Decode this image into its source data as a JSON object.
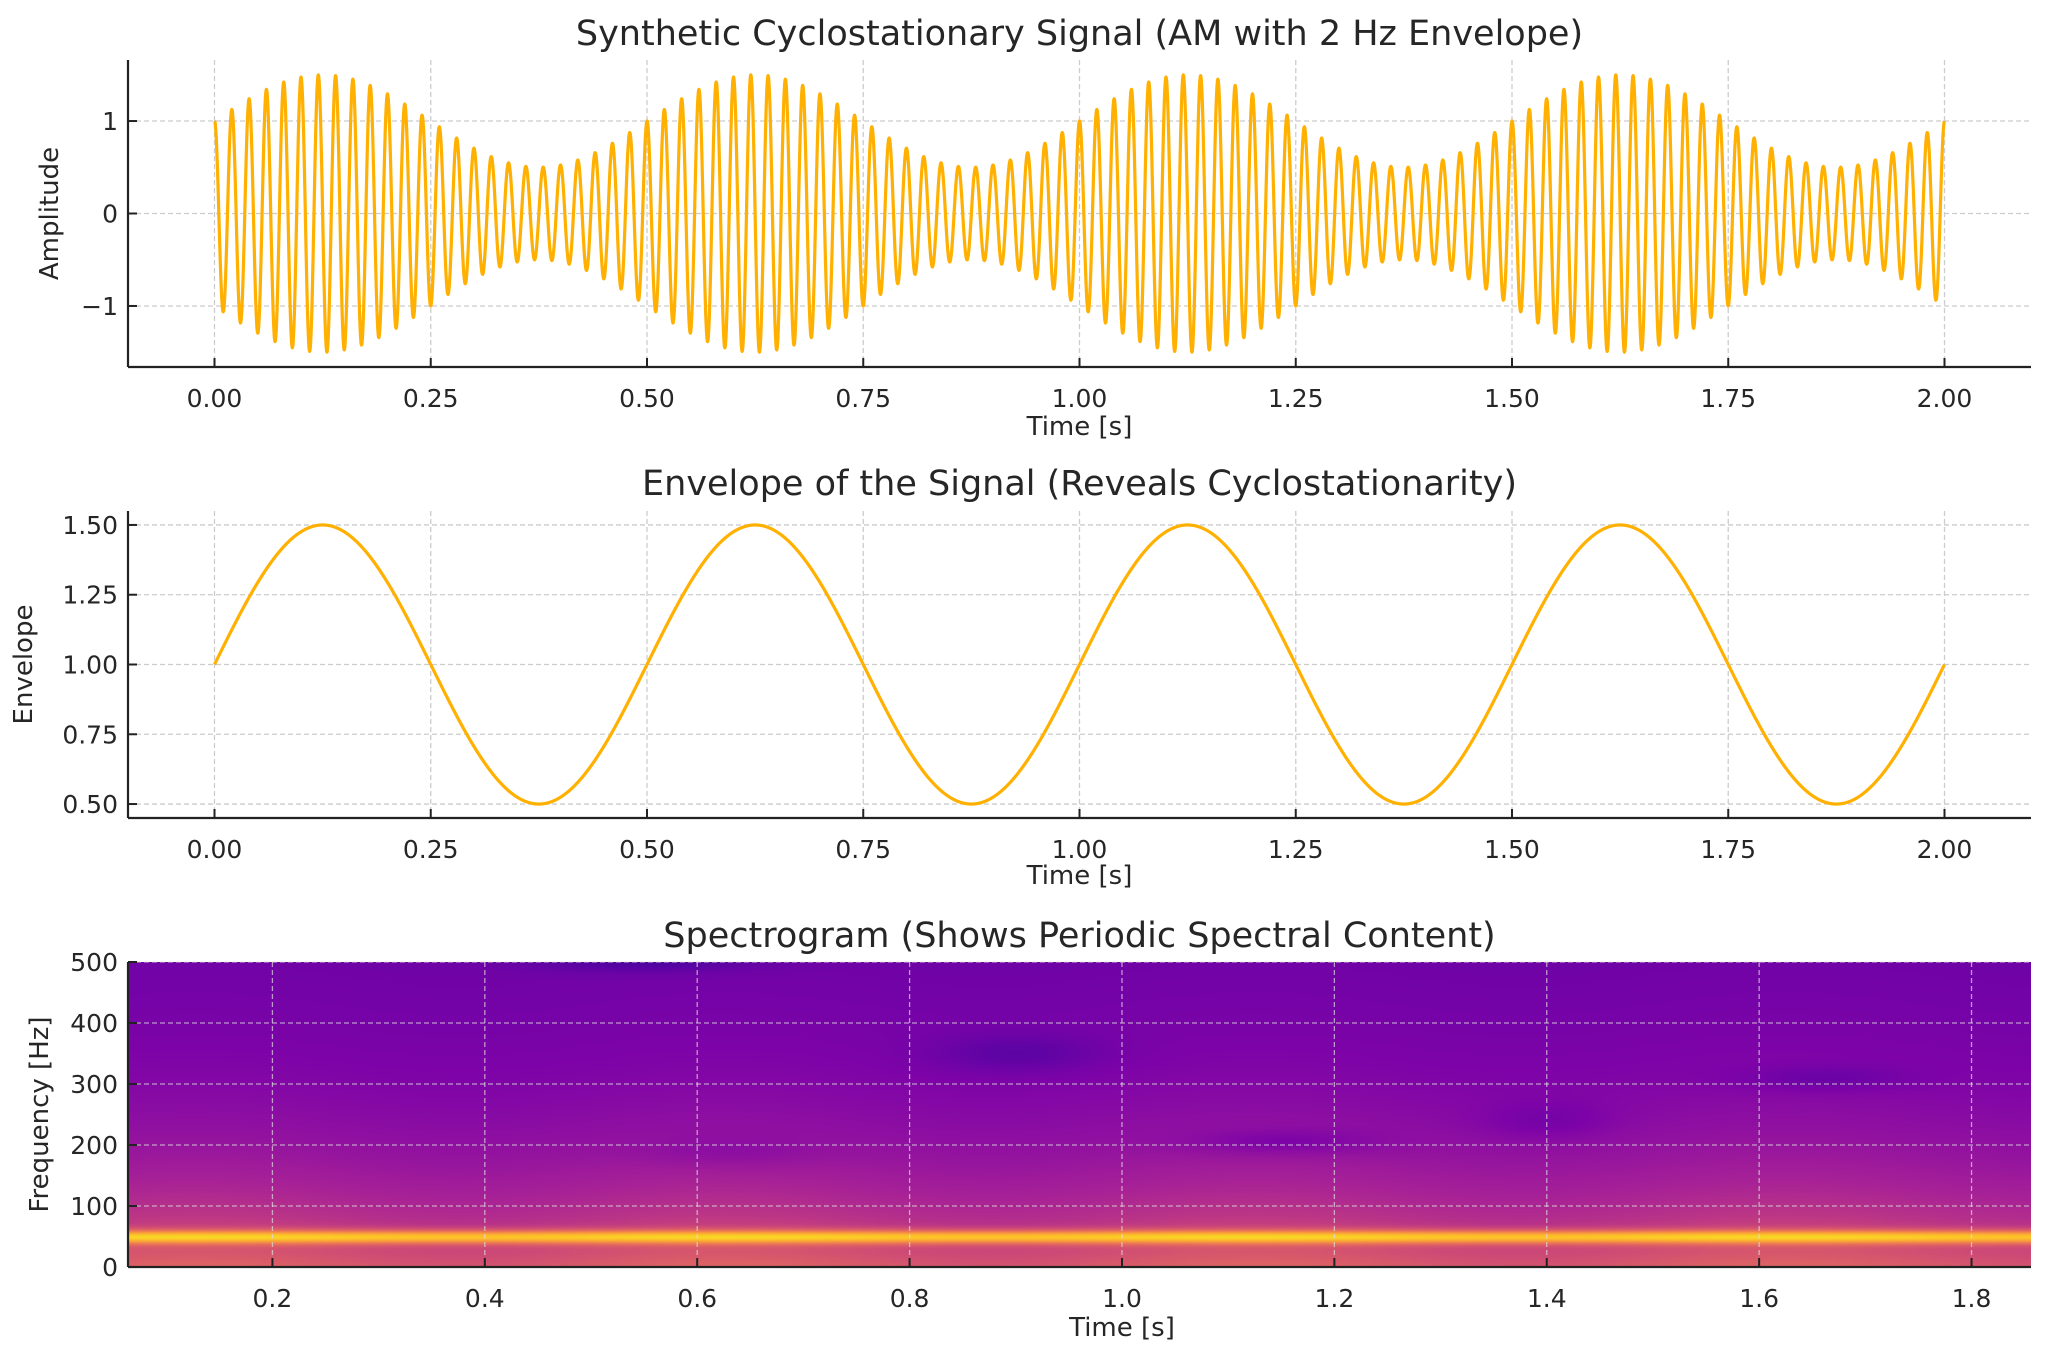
{
  "chart_data": [
    {
      "type": "line",
      "title": "Synthetic Cyclostationary Signal (AM with 2 Hz Envelope)",
      "xlabel": "Time [s]",
      "ylabel": "Amplitude",
      "xlim": [
        -0.1,
        2.1
      ],
      "ylim": [
        -1.66,
        1.66
      ],
      "xticks": [
        "0.00",
        "0.25",
        "0.50",
        "0.75",
        "1.00",
        "1.25",
        "1.50",
        "1.75",
        "2.00"
      ],
      "xtick_values": [
        0,
        0.25,
        0.5,
        0.75,
        1,
        1.25,
        1.5,
        1.75,
        2
      ],
      "yticks": [
        "−1",
        "0",
        "1"
      ],
      "ytick_values": [
        -1,
        0,
        1
      ],
      "grid": true,
      "color": "#FFB000",
      "series": [
        {
          "function": "(1 + 0.5*sin(2*pi*2*t)) * cos(2*pi*50*t)",
          "t_range": [
            0,
            2
          ],
          "carrier_hz": 50,
          "envelope_hz": 2,
          "modulation_depth": 0.5
        }
      ]
    },
    {
      "type": "line",
      "title": "Envelope of the Signal (Reveals Cyclostationarity)",
      "xlabel": "Time [s]",
      "ylabel": "Envelope",
      "xlim": [
        -0.1,
        2.1
      ],
      "ylim": [
        0.45,
        1.55
      ],
      "xticks": [
        "0.00",
        "0.25",
        "0.50",
        "0.75",
        "1.00",
        "1.25",
        "1.50",
        "1.75",
        "2.00"
      ],
      "xtick_values": [
        0,
        0.25,
        0.5,
        0.75,
        1,
        1.25,
        1.5,
        1.75,
        2
      ],
      "yticks": [
        "0.50",
        "0.75",
        "1.00",
        "1.25",
        "1.50"
      ],
      "ytick_values": [
        0.5,
        0.75,
        1,
        1.25,
        1.5
      ],
      "grid": true,
      "color": "#FFB000",
      "series": [
        {
          "function": "1 + 0.5*sin(2*pi*2*t)",
          "t_range": [
            0,
            2
          ]
        }
      ]
    },
    {
      "type": "heatmap",
      "title": "Spectrogram (Shows Periodic Spectral Content)",
      "xlabel": "Time [s]",
      "ylabel": "Frequency [Hz]",
      "xlim": [
        0.064,
        1.856
      ],
      "ylim": [
        0,
        500
      ],
      "xticks": [
        "0.2",
        "0.4",
        "0.6",
        "0.8",
        "1.0",
        "1.2",
        "1.4",
        "1.6",
        "1.8"
      ],
      "xtick_values": [
        0.2,
        0.4,
        0.6,
        0.8,
        1.0,
        1.2,
        1.4,
        1.6,
        1.8
      ],
      "yticks": [
        "0",
        "100",
        "200",
        "300",
        "400",
        "500"
      ],
      "ytick_values": [
        0,
        100,
        200,
        300,
        400,
        500
      ],
      "grid": true,
      "colormap": "plasma",
      "dominant_band_hz": 50
    }
  ]
}
